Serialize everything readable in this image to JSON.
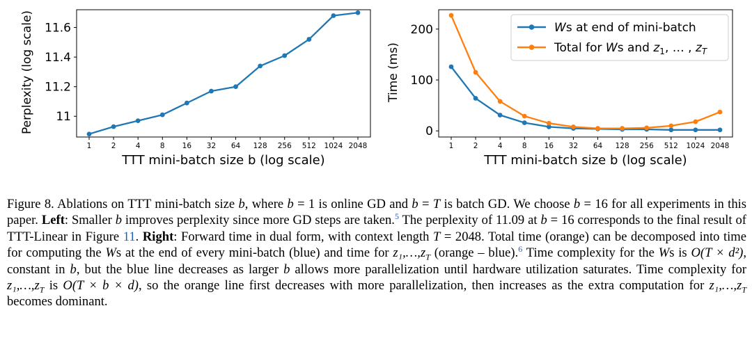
{
  "chart_data": [
    {
      "type": "line",
      "x": [
        "1",
        "2",
        "4",
        "8",
        "16",
        "32",
        "64",
        "128",
        "256",
        "512",
        "1024",
        "2048"
      ],
      "series": [
        {
          "name": "Perplexity",
          "color": "#1f77b4",
          "values": [
            10.88,
            10.93,
            10.97,
            11.01,
            11.09,
            11.17,
            11.2,
            11.34,
            11.41,
            11.52,
            11.68,
            11.7
          ]
        }
      ],
      "yticks": [
        "11",
        "11.2",
        "11.4",
        "11.6"
      ],
      "ytick_values": [
        11.0,
        11.2,
        11.4,
        11.6
      ],
      "ylim": [
        10.86,
        11.72
      ],
      "xlabel": "TTT mini-batch size b (log scale)",
      "ylabel": "Perplexity (log scale)",
      "grid": false
    },
    {
      "type": "line",
      "x": [
        "1",
        "2",
        "4",
        "8",
        "16",
        "32",
        "64",
        "128",
        "256",
        "512",
        "1024",
        "2048"
      ],
      "series": [
        {
          "name": "Ws at end of mini-batch",
          "color": "#1f77b4",
          "values": [
            126,
            64,
            31,
            16,
            8,
            5,
            4,
            3,
            3,
            2,
            2,
            2
          ]
        },
        {
          "name": "Total for Ws and z1, ..., zT",
          "color": "#ff7f0e",
          "values": [
            227,
            115,
            58,
            29,
            15,
            8,
            5,
            5,
            6,
            10,
            18,
            37
          ]
        }
      ],
      "yticks": [
        "0",
        "100",
        "200"
      ],
      "ytick_values": [
        0,
        100,
        200
      ],
      "ylim": [
        -12,
        238
      ],
      "xlabel": "TTT mini-batch size b (log scale)",
      "ylabel": "Time (ms)",
      "legend_position": "top-right",
      "grid": false
    }
  ],
  "caption": {
    "fig_label": "Figure 8.",
    "s1a": "Ablations on TTT mini-batch size ",
    "s1b": ", where ",
    "s1c": " = 1 is online GD and ",
    "s1d": " = ",
    "s1e": " is batch GD. We choose ",
    "s1f": " = 16 for all experiments in this paper.",
    "left_label": "Left",
    "left_text_a": ": Smaller ",
    "left_text_b": " improves perplexity since more GD steps are taken.",
    "footnote_a": "5",
    "s3a": " The perplexity of 11.09 at ",
    "s3b": " = 16 corresponds to the final result of TTT-Linear in Figure ",
    "figure_ref": "11",
    "s3c": ".",
    "right_label": "Right",
    "right_text_a": ": Forward time in dual form, with context length ",
    "right_text_b": " = 2048. Total time (orange) can be decomposed into time for computing the ",
    "right_text_c": "s at the end of every mini-batch (blue) and time for ",
    "right_text_d": " (orange – blue).",
    "footnote_b": "6",
    "s5a": " Time complexity for the ",
    "s5b": "s is ",
    "s5c": ", constant in ",
    "s5d": ", but the blue line decreases as larger ",
    "s5e": " allows more parallelization until hardware utilization saturates. Time complexity for ",
    "s5f": " is ",
    "s5g": ", so the orange line first decreases with more parallelization, then increases as the extra computation for ",
    "s5h": " becomes dominant.",
    "var_b": "b",
    "var_T": "T",
    "var_W": "W",
    "z_seq": "z₁,…,z",
    "sub_T": "T",
    "complexity_1": "O(T × d²)",
    "complexity_2": "O(T × b × d)"
  }
}
